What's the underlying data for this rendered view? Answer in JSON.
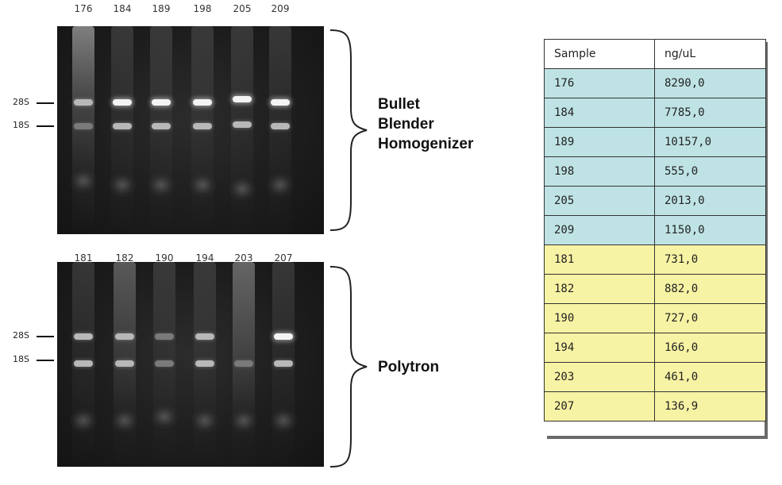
{
  "top_gel": {
    "lanes": [
      "176",
      "184",
      "189",
      "198",
      "205",
      "209"
    ],
    "markers": [
      "28S",
      "18S"
    ],
    "group_label_lines": [
      "Bullet",
      "Blender",
      "Homogenizer"
    ]
  },
  "bottom_gel": {
    "lanes": [
      "181",
      "182",
      "190",
      "194",
      "203",
      "207"
    ],
    "markers": [
      "28S",
      "18S"
    ],
    "group_label_lines": [
      "Polytron"
    ]
  },
  "table": {
    "headers": [
      "Sample",
      "ng/uL"
    ],
    "row_colors": {
      "bullet_blender": "#bfe3e5",
      "polytron": "#f7f3a4"
    },
    "rows": [
      {
        "sample": "176",
        "value": "8290,0",
        "group": "blue"
      },
      {
        "sample": "184",
        "value": "7785,0",
        "group": "blue"
      },
      {
        "sample": "189",
        "value": "10157,0",
        "group": "blue"
      },
      {
        "sample": "198",
        "value": "555,0",
        "group": "blue"
      },
      {
        "sample": "205",
        "value": "2013,0",
        "group": "blue"
      },
      {
        "sample": "209",
        "value": "1150,0",
        "group": "blue"
      },
      {
        "sample": "181",
        "value": "731,0",
        "group": "yellow"
      },
      {
        "sample": "182",
        "value": "882,0",
        "group": "yellow"
      },
      {
        "sample": "190",
        "value": "727,0",
        "group": "yellow"
      },
      {
        "sample": "194",
        "value": "166,0",
        "group": "yellow"
      },
      {
        "sample": "203",
        "value": "461,0",
        "group": "yellow"
      },
      {
        "sample": "207",
        "value": "136,9",
        "group": "yellow"
      }
    ]
  }
}
